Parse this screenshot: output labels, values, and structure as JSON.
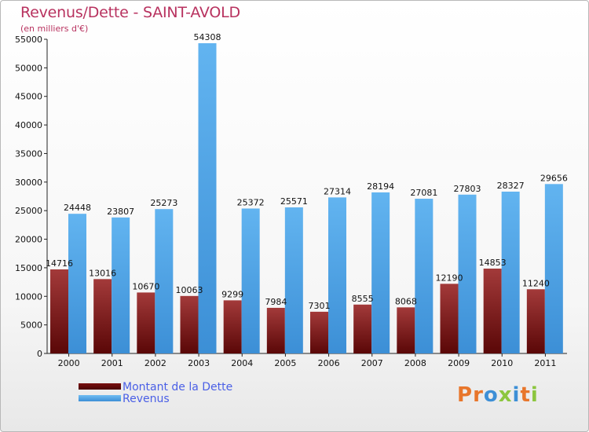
{
  "title": "Revenus/Dette - SAINT-AVOLD",
  "subtitle": "(en milliers d'€)",
  "logo_text": "Proxiti",
  "colors": {
    "dette": "#6e0a0a",
    "dette_light": "#a33a3a",
    "revenus": "#4ea5e6",
    "revenus_light": "#6fbcf2",
    "accent_title": "#b8325f"
  },
  "chart_data": {
    "type": "bar",
    "categories": [
      "2000",
      "2001",
      "2002",
      "2003",
      "2004",
      "2005",
      "2006",
      "2007",
      "2008",
      "2009",
      "2010",
      "2011"
    ],
    "series": [
      {
        "name": "Montant de la Dette",
        "values": [
          14716,
          13016,
          10670,
          10063,
          9299,
          7984,
          7301,
          8555,
          8068,
          12190,
          14853,
          11240
        ],
        "labels": [
          "14716",
          "13016",
          "10670",
          "10063",
          "9299",
          "7984",
          "7301",
          "8555",
          "8068",
          "12190",
          "14853",
          "11240"
        ]
      },
      {
        "name": "Revenus",
        "values": [
          24448,
          23807,
          25273,
          54308,
          25372,
          25571,
          27314,
          28194,
          27081,
          27803,
          28327,
          29656
        ],
        "labels": [
          "24448",
          "23807",
          "25273",
          "54308",
          "25372",
          "25571",
          "27314",
          "28194",
          "27081",
          "27803",
          "28327",
          "29656"
        ]
      }
    ],
    "ylim": [
      0,
      55000
    ],
    "yticks": [
      0,
      5000,
      10000,
      15000,
      20000,
      25000,
      30000,
      35000,
      40000,
      45000,
      50000,
      55000
    ],
    "ytick_labels": [
      "0",
      "5000",
      "10000",
      "15000",
      "20000",
      "25000",
      "30000",
      "35000",
      "40000",
      "45000",
      "50000",
      "55000"
    ],
    "grid": false,
    "legend_position": "bottom-left"
  }
}
